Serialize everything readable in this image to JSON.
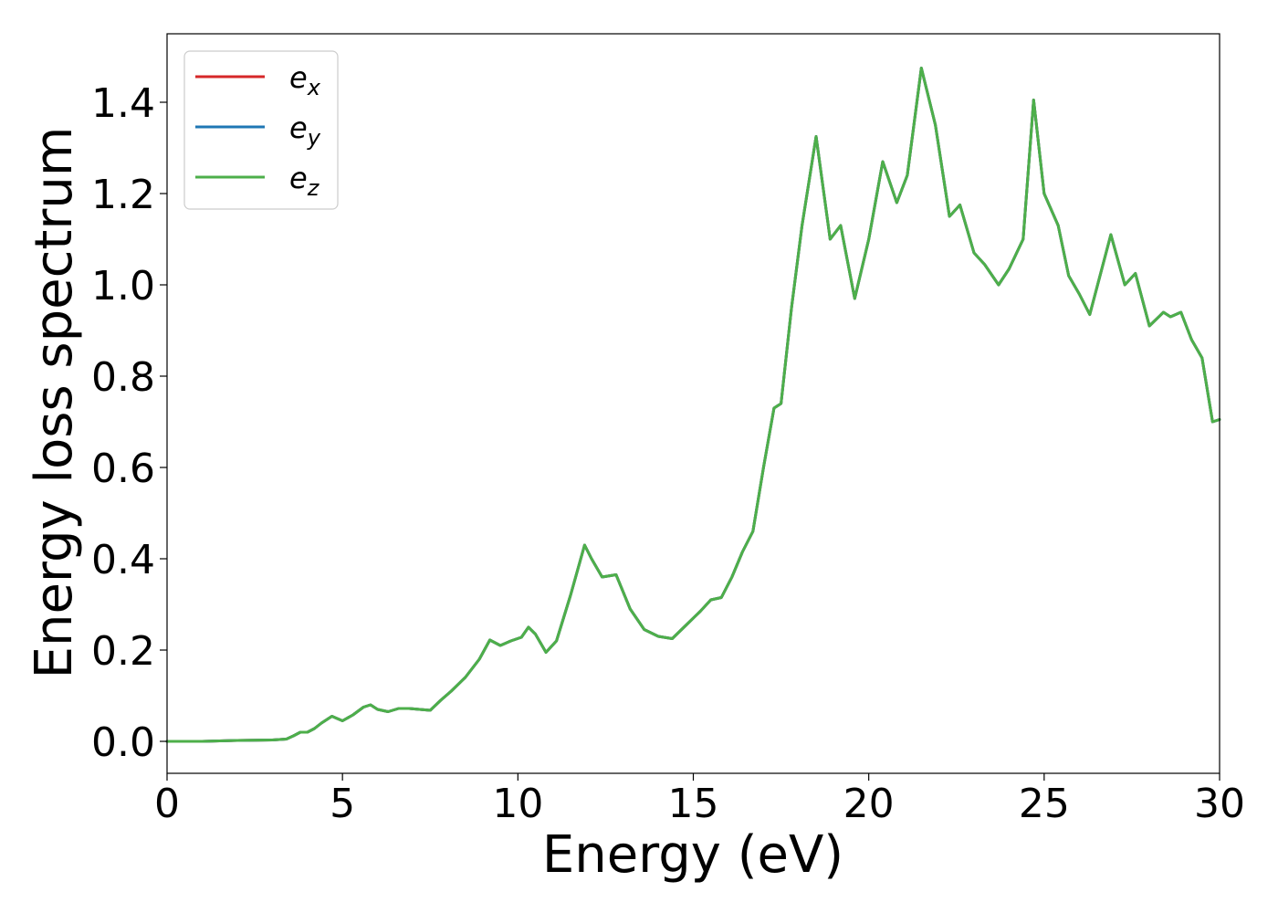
{
  "chart_data": {
    "type": "line",
    "title": "",
    "xlabel": "Energy (eV)",
    "ylabel": "Energy loss spectrum",
    "xlim": [
      0,
      30
    ],
    "ylim": [
      -0.07,
      1.55
    ],
    "xticks": [
      0,
      5,
      10,
      15,
      20,
      25,
      30
    ],
    "xtick_labels": [
      "0",
      "5",
      "10",
      "15",
      "20",
      "25",
      "30"
    ],
    "yticks": [
      0.0,
      0.2,
      0.4,
      0.6,
      0.8,
      1.0,
      1.2,
      1.4
    ],
    "ytick_labels": [
      "0.0",
      "0.2",
      "0.4",
      "0.6",
      "0.8",
      "1.0",
      "1.2",
      "1.4"
    ],
    "grid": false,
    "legend_position": "top-left",
    "x": [
      0.0,
      1.0,
      2.0,
      3.0,
      3.4,
      3.6,
      3.8,
      4.0,
      4.2,
      4.4,
      4.7,
      5.0,
      5.3,
      5.6,
      5.8,
      6.0,
      6.3,
      6.6,
      6.9,
      7.2,
      7.5,
      7.8,
      8.1,
      8.5,
      8.9,
      9.2,
      9.5,
      9.8,
      10.1,
      10.3,
      10.5,
      10.8,
      11.1,
      11.5,
      11.9,
      12.1,
      12.4,
      12.8,
      13.2,
      13.6,
      14.0,
      14.4,
      14.8,
      15.2,
      15.5,
      15.8,
      16.1,
      16.4,
      16.7,
      17.0,
      17.3,
      17.5,
      17.8,
      18.1,
      18.5,
      18.9,
      19.2,
      19.6,
      20.0,
      20.4,
      20.8,
      21.1,
      21.5,
      21.9,
      22.3,
      22.6,
      23.0,
      23.3,
      23.7,
      24.0,
      24.4,
      24.7,
      25.0,
      25.4,
      25.7,
      26.0,
      26.3,
      26.9,
      27.3,
      27.6,
      28.0,
      28.4,
      28.6,
      28.9,
      29.2,
      29.5,
      29.8,
      30.0
    ],
    "series": [
      {
        "name": "e_x",
        "color": "#d62728",
        "values": [
          0.0,
          0.0,
          0.002,
          0.003,
          0.005,
          0.012,
          0.02,
          0.02,
          0.028,
          0.04,
          0.055,
          0.045,
          0.058,
          0.075,
          0.08,
          0.07,
          0.065,
          0.072,
          0.072,
          0.07,
          0.068,
          0.09,
          0.11,
          0.14,
          0.18,
          0.222,
          0.21,
          0.22,
          0.228,
          0.25,
          0.235,
          0.195,
          0.22,
          0.32,
          0.43,
          0.4,
          0.36,
          0.365,
          0.29,
          0.245,
          0.23,
          0.225,
          0.255,
          0.285,
          0.31,
          0.315,
          0.36,
          0.415,
          0.46,
          0.6,
          0.73,
          0.74,
          0.95,
          1.13,
          1.325,
          1.1,
          1.13,
          0.97,
          1.1,
          1.27,
          1.18,
          1.24,
          1.475,
          1.35,
          1.15,
          1.175,
          1.07,
          1.045,
          1.0,
          1.035,
          1.1,
          1.405,
          1.2,
          1.13,
          1.02,
          0.98,
          0.935,
          1.11,
          1.0,
          1.025,
          0.91,
          0.94,
          0.93,
          0.94,
          0.88,
          0.84,
          0.7,
          0.705
        ]
      },
      {
        "name": "e_y",
        "color": "#1f77b4",
        "values": [
          0.0,
          0.0,
          0.002,
          0.003,
          0.005,
          0.012,
          0.02,
          0.02,
          0.028,
          0.04,
          0.055,
          0.045,
          0.058,
          0.075,
          0.08,
          0.07,
          0.065,
          0.072,
          0.072,
          0.07,
          0.068,
          0.09,
          0.11,
          0.14,
          0.18,
          0.222,
          0.21,
          0.22,
          0.228,
          0.25,
          0.235,
          0.195,
          0.22,
          0.32,
          0.43,
          0.4,
          0.36,
          0.365,
          0.29,
          0.245,
          0.23,
          0.225,
          0.255,
          0.285,
          0.31,
          0.315,
          0.36,
          0.415,
          0.46,
          0.6,
          0.73,
          0.74,
          0.95,
          1.13,
          1.325,
          1.1,
          1.13,
          0.97,
          1.1,
          1.27,
          1.18,
          1.24,
          1.475,
          1.35,
          1.15,
          1.175,
          1.07,
          1.045,
          1.0,
          1.035,
          1.1,
          1.405,
          1.2,
          1.13,
          1.02,
          0.98,
          0.935,
          1.11,
          1.0,
          1.025,
          0.91,
          0.94,
          0.93,
          0.94,
          0.88,
          0.84,
          0.7,
          0.705
        ]
      },
      {
        "name": "e_z",
        "color": "#4daf4a",
        "values": [
          0.0,
          0.0,
          0.002,
          0.003,
          0.005,
          0.012,
          0.02,
          0.02,
          0.028,
          0.04,
          0.055,
          0.045,
          0.058,
          0.075,
          0.08,
          0.07,
          0.065,
          0.072,
          0.072,
          0.07,
          0.068,
          0.09,
          0.11,
          0.14,
          0.18,
          0.222,
          0.21,
          0.22,
          0.228,
          0.25,
          0.235,
          0.195,
          0.22,
          0.32,
          0.43,
          0.4,
          0.36,
          0.365,
          0.29,
          0.245,
          0.23,
          0.225,
          0.255,
          0.285,
          0.31,
          0.315,
          0.36,
          0.415,
          0.46,
          0.6,
          0.73,
          0.74,
          0.95,
          1.13,
          1.325,
          1.1,
          1.13,
          0.97,
          1.1,
          1.27,
          1.18,
          1.24,
          1.475,
          1.35,
          1.15,
          1.175,
          1.07,
          1.045,
          1.0,
          1.035,
          1.1,
          1.405,
          1.2,
          1.13,
          1.02,
          0.98,
          0.935,
          1.11,
          1.0,
          1.025,
          0.91,
          0.94,
          0.93,
          0.94,
          0.88,
          0.84,
          0.7,
          0.705
        ]
      }
    ]
  }
}
